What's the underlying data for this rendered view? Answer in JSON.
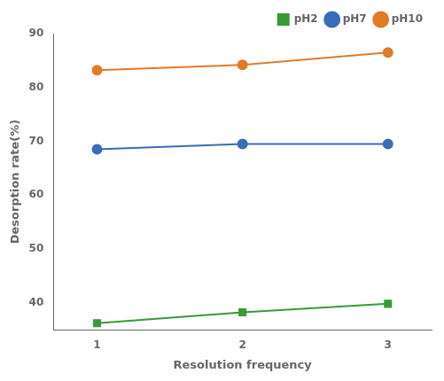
{
  "chart_data": {
    "type": "line",
    "x": [
      1,
      2,
      3
    ],
    "series": [
      {
        "name": "pH2",
        "color": "#3a9a3a",
        "marker": "square",
        "values": [
          36.2,
          38.2,
          39.8
        ]
      },
      {
        "name": "pH7",
        "color": "#3a6db5",
        "marker": "circle",
        "values": [
          68.5,
          69.5,
          69.5
        ]
      },
      {
        "name": "pH10",
        "color": "#e07b2a",
        "marker": "circle",
        "values": [
          83.2,
          84.2,
          86.5
        ]
      }
    ],
    "xlabel": "Resolution frequency",
    "ylabel": "Desorption rate(%)",
    "xlim": [
      0.7,
      3.3
    ],
    "xticks": [
      1,
      2,
      3
    ],
    "ylim": [
      35,
      90
    ],
    "yticks": [
      40,
      50,
      60,
      70,
      80,
      90
    ],
    "grid": false,
    "legend": "upper right"
  }
}
